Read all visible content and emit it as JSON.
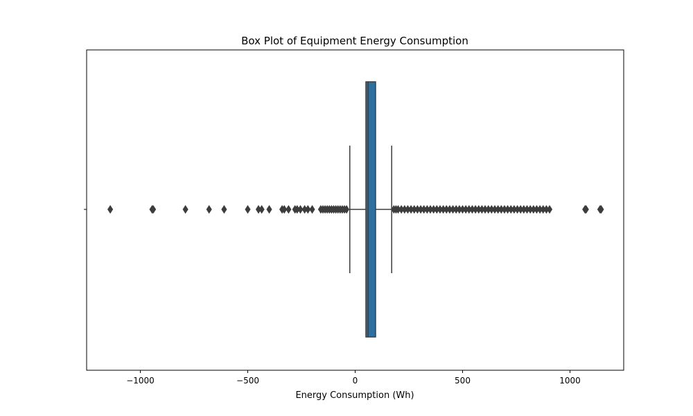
{
  "chart_data": {
    "type": "box",
    "orientation": "horizontal",
    "title": "Box Plot of Equipment Energy Consumption",
    "xlabel": "Energy Consumption (Wh)",
    "ylabel": "",
    "xlim": [
      -1250,
      1250
    ],
    "xticks": [
      -1000,
      -500,
      0,
      500,
      1000
    ],
    "xtick_labels": [
      "−1000",
      "−500",
      "0",
      "500",
      "1000"
    ],
    "grid": false,
    "color": "#2f6f9f",
    "edge_color": "#3d3d3d",
    "box": {
      "whisker_low": -25,
      "q1": 50,
      "median": 60,
      "q3": 95,
      "whisker_high": 170
    },
    "outliers": [
      -1140,
      -945,
      -940,
      -790,
      -680,
      -610,
      -500,
      -450,
      -435,
      -400,
      -340,
      -330,
      -310,
      -280,
      -270,
      -255,
      -235,
      -220,
      -200,
      -160,
      -150,
      -140,
      -130,
      -120,
      -110,
      -100,
      -90,
      -80,
      -70,
      -60,
      -50,
      -40,
      180,
      190,
      200,
      215,
      230,
      245,
      260,
      275,
      290,
      305,
      320,
      335,
      350,
      365,
      380,
      395,
      410,
      425,
      440,
      455,
      470,
      485,
      500,
      515,
      530,
      545,
      560,
      575,
      590,
      605,
      620,
      635,
      650,
      665,
      680,
      695,
      710,
      725,
      740,
      755,
      770,
      785,
      800,
      815,
      830,
      845,
      860,
      875,
      890,
      905,
      1070,
      1075,
      1140,
      1145
    ]
  }
}
